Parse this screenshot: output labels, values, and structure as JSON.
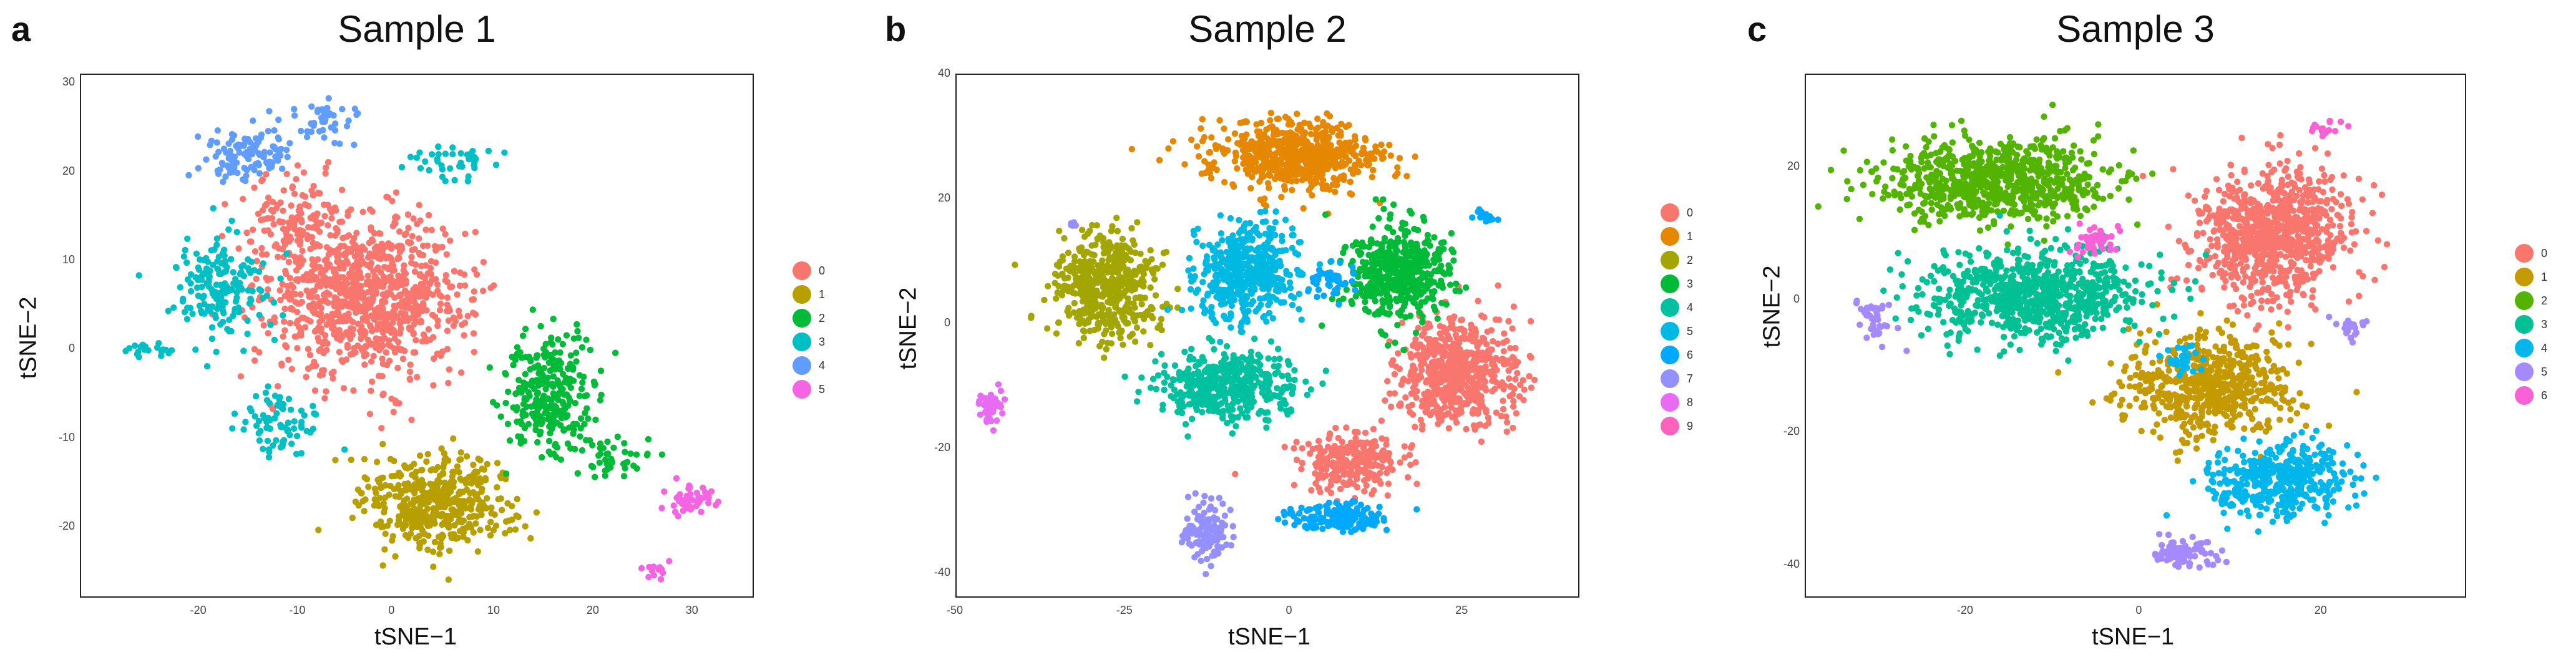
{
  "chart_data": [
    {
      "type": "scatter",
      "panel_letter": "a",
      "title": "Sample 1",
      "xlabel": "tSNE−1",
      "ylabel": "tSNE−2",
      "xlim": [
        -32,
        36
      ],
      "ylim": [
        -28,
        31
      ],
      "xticks": [
        -20,
        -10,
        0,
        10,
        20,
        30
      ],
      "yticks": [
        -20,
        -10,
        0,
        10,
        20,
        30
      ],
      "grid": false,
      "legend_position": "right",
      "series": [
        {
          "name": "0",
          "color": "#F8766D",
          "clusters": [
            {
              "center": [
                -3,
                6
              ],
              "spread": [
                9,
                8
              ],
              "count": 900
            },
            {
              "center": [
                -10,
                14
              ],
              "spread": [
                5,
                5
              ],
              "count": 150
            }
          ]
        },
        {
          "name": "1",
          "color": "#B79F00",
          "clusters": [
            {
              "center": [
                4,
                -17
              ],
              "spread": [
                7,
                5
              ],
              "count": 450
            }
          ]
        },
        {
          "name": "2",
          "color": "#00BA38",
          "clusters": [
            {
              "center": [
                15,
                -5
              ],
              "spread": [
                4,
                6
              ],
              "count": 300
            },
            {
              "center": [
                22,
                -12
              ],
              "spread": [
                3,
                2
              ],
              "count": 40
            }
          ]
        },
        {
          "name": "3",
          "color": "#00BFC4",
          "clusters": [
            {
              "center": [
                -18,
                7
              ],
              "spread": [
                4,
                5
              ],
              "count": 180
            },
            {
              "center": [
                -12,
                -8
              ],
              "spread": [
                4,
                3
              ],
              "count": 80
            },
            {
              "center": [
                5,
                21
              ],
              "spread": [
                4,
                2
              ],
              "count": 40
            },
            {
              "center": [
                -25,
                0
              ],
              "spread": [
                2,
                1
              ],
              "count": 20
            }
          ]
        },
        {
          "name": "4",
          "color": "#619CFF",
          "clusters": [
            {
              "center": [
                -15,
                22
              ],
              "spread": [
                4,
                3
              ],
              "count": 110
            },
            {
              "center": [
                -7,
                26
              ],
              "spread": [
                3,
                2
              ],
              "count": 40
            }
          ]
        },
        {
          "name": "5",
          "color": "#F564E3",
          "clusters": [
            {
              "center": [
                29,
                -17
              ],
              "spread": [
                2.5,
                1.5
              ],
              "count": 50
            },
            {
              "center": [
                26,
                -25
              ],
              "spread": [
                1,
                1.5
              ],
              "count": 12
            }
          ]
        }
      ]
    },
    {
      "type": "scatter",
      "panel_letter": "b",
      "title": "Sample 2",
      "xlabel": "tSNE−1",
      "ylabel": "tSNE−2",
      "xlim": [
        -50,
        42
      ],
      "ylim": [
        -44,
        40
      ],
      "xticks": [
        -50,
        -25,
        0,
        25
      ],
      "yticks": [
        -40,
        -20,
        0,
        20,
        40
      ],
      "grid": false,
      "legend_position": "right",
      "series": [
        {
          "name": "0",
          "color": "#F8766D",
          "clusters": [
            {
              "center": [
                24,
                -8
              ],
              "spread": [
                8,
                8
              ],
              "count": 600
            },
            {
              "center": [
                8,
                -22
              ],
              "spread": [
                7,
                4
              ],
              "count": 250
            }
          ]
        },
        {
          "name": "1",
          "color": "#E58700",
          "clusters": [
            {
              "center": [
                0,
                27
              ],
              "spread": [
                11,
                5
              ],
              "count": 650
            }
          ]
        },
        {
          "name": "2",
          "color": "#A3A500",
          "clusters": [
            {
              "center": [
                -28,
                6
              ],
              "spread": [
                7,
                8
              ],
              "count": 500
            }
          ]
        },
        {
          "name": "3",
          "color": "#00BA38",
          "clusters": [
            {
              "center": [
                15,
                8
              ],
              "spread": [
                7,
                7
              ],
              "count": 500
            }
          ]
        },
        {
          "name": "4",
          "color": "#00C19F",
          "clusters": [
            {
              "center": [
                -10,
                -10
              ],
              "spread": [
                9,
                5
              ],
              "count": 450
            }
          ]
        },
        {
          "name": "5",
          "color": "#00B9E3",
          "clusters": [
            {
              "center": [
                -7,
                8
              ],
              "spread": [
                7,
                7
              ],
              "count": 500
            }
          ]
        },
        {
          "name": "6",
          "color": "#00A9FF",
          "clusters": [
            {
              "center": [
                6,
                -31
              ],
              "spread": [
                6,
                2
              ],
              "count": 150
            },
            {
              "center": [
                5,
                7
              ],
              "spread": [
                3,
                3
              ],
              "count": 50
            },
            {
              "center": [
                28,
                17
              ],
              "spread": [
                2,
                1
              ],
              "count": 15
            }
          ]
        },
        {
          "name": "7",
          "color": "#9590FF",
          "clusters": [
            {
              "center": [
                -13,
                -33
              ],
              "spread": [
                3,
                4
              ],
              "count": 150
            },
            {
              "center": [
                -33,
                16
              ],
              "spread": [
                0.8,
                0.6
              ],
              "count": 8
            }
          ]
        },
        {
          "name": "8",
          "color": "#E76BF3",
          "clusters": [
            {
              "center": [
                -45,
                -13
              ],
              "spread": [
                2,
                2
              ],
              "count": 45
            }
          ]
        },
        {
          "name": "9",
          "color": "#FF62BC",
          "clusters": []
        }
      ]
    },
    {
      "type": "scatter",
      "panel_letter": "c",
      "title": "Sample 3",
      "xlabel": "tSNE−1",
      "ylabel": "tSNE−2",
      "xlim": [
        -38,
        36
      ],
      "ylim": [
        -45,
        34
      ],
      "xticks": [
        -20,
        0,
        20
      ],
      "yticks": [
        -40,
        -20,
        0,
        20
      ],
      "grid": false,
      "legend_position": "right",
      "series": [
        {
          "name": "0",
          "color": "#F8766D",
          "clusters": [
            {
              "center": [
                14,
                10
              ],
              "spread": [
                8,
                9
              ],
              "count": 850
            }
          ]
        },
        {
          "name": "1",
          "color": "#C49A00",
          "clusters": [
            {
              "center": [
                7,
                -13
              ],
              "spread": [
                9,
                7
              ],
              "count": 600
            }
          ]
        },
        {
          "name": "2",
          "color": "#53B400",
          "clusters": [
            {
              "center": [
                -17,
                18
              ],
              "spread": [
                11,
                6
              ],
              "count": 750
            }
          ]
        },
        {
          "name": "3",
          "color": "#00C094",
          "clusters": [
            {
              "center": [
                -12,
                1
              ],
              "spread": [
                11,
                6
              ],
              "count": 800
            }
          ]
        },
        {
          "name": "4",
          "color": "#00B6EB",
          "clusters": [
            {
              "center": [
                15,
                -27
              ],
              "spread": [
                7,
                5
              ],
              "count": 420
            },
            {
              "center": [
                4,
                -9
              ],
              "spread": [
                2,
                2
              ],
              "count": 30
            }
          ]
        },
        {
          "name": "5",
          "color": "#A58AFF",
          "clusters": [
            {
              "center": [
                4,
                -38
              ],
              "spread": [
                3,
                2
              ],
              "count": 90
            },
            {
              "center": [
                -30,
                -3
              ],
              "spread": [
                2,
                3
              ],
              "count": 40
            },
            {
              "center": [
                23,
                -4
              ],
              "spread": [
                1.5,
                2
              ],
              "count": 20
            }
          ]
        },
        {
          "name": "6",
          "color": "#FB61D7",
          "clusters": [
            {
              "center": [
                -6,
                9
              ],
              "spread": [
                2,
                2
              ],
              "count": 45
            },
            {
              "center": [
                20,
                26
              ],
              "spread": [
                2,
                1
              ],
              "count": 15
            }
          ]
        }
      ]
    }
  ]
}
